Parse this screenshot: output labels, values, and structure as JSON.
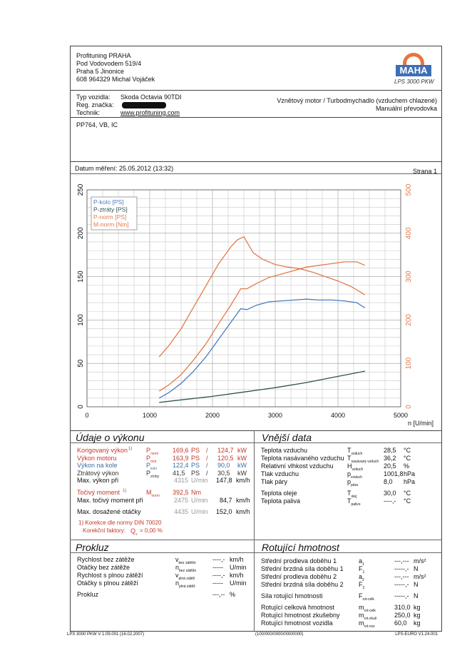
{
  "company": {
    "name": "Profituning PRAHA",
    "street": "Pod Vodovodem 519/4",
    "city": "Praha 5 Jinonice",
    "contact": "608 964329  Michal Vojáček"
  },
  "logo": {
    "text": "MAHA",
    "caption": "LPS 3000 PKW",
    "ring": "Maschinenbau Haldenwang"
  },
  "vehicle": {
    "type_label": "Typ vozidla:",
    "type_value": "Skoda Octavia 90TDI",
    "reg_label": "Reg. značka:",
    "tech_label": "Technik:",
    "tech_value": "www.profituning.com",
    "engine": "Vznětový motor / Turbodmychadlo (vzduchem chlazené)",
    "gearbox": "Manuální převodovka"
  },
  "notes": "PP764, VB, IC",
  "measurement": {
    "date_label": "Datum měření: 25.05.2012 (13:32)",
    "page_label": "Strana 1"
  },
  "colors": {
    "p_kolo": "#4a7cc0",
    "p_ztraty": "#2f4f4f",
    "p_norm": "#e07b4a",
    "m_norm": "#e07b4a"
  },
  "chart_data": {
    "type": "line",
    "xlabel": "n [U/min]",
    "xlim": [
      0,
      5000
    ],
    "xticks": [
      0,
      1000,
      2000,
      3000,
      4000,
      5000
    ],
    "ylim_left": [
      0,
      250
    ],
    "yticks_left": [
      0,
      50,
      100,
      150,
      200,
      250
    ],
    "ylim_right": [
      0,
      500
    ],
    "yticks_right": [
      0,
      100,
      200,
      300,
      400,
      500
    ],
    "grid": true,
    "legend_placement": "top-left",
    "series": [
      {
        "name": "P-kolo [PS]",
        "axis": "left",
        "color": "#4a7cc0",
        "x": [
          1150,
          1300,
          1500,
          1700,
          1900,
          2100,
          2300,
          2450,
          2550,
          2700,
          2900,
          3100,
          3300,
          3500,
          3700,
          3900,
          4100,
          4300,
          4430
        ],
        "y": [
          10,
          16,
          27,
          41,
          58,
          78,
          98,
          113,
          112,
          117,
          121,
          122,
          123,
          124,
          123,
          123,
          122,
          120,
          114
        ]
      },
      {
        "name": "P-ztráty [PS]",
        "axis": "left",
        "color": "#2f4f4f",
        "x": [
          1150,
          1500,
          2000,
          2500,
          3000,
          3500,
          4000,
          4430
        ],
        "y": [
          5,
          8,
          12,
          17,
          22,
          28,
          35,
          41
        ]
      },
      {
        "name": "P-norm [PS]",
        "axis": "left",
        "color": "#e07b4a",
        "x": [
          1150,
          1300,
          1500,
          1700,
          1900,
          2100,
          2300,
          2450,
          2550,
          2700,
          2900,
          3100,
          3300,
          3500,
          3700,
          3900,
          4100,
          4300,
          4430
        ],
        "y": [
          18,
          25,
          37,
          54,
          73,
          96,
          118,
          136,
          136,
          142,
          149,
          153,
          157,
          161,
          163,
          165,
          167,
          167,
          163
        ]
      },
      {
        "name": "M-norm [Nm]",
        "axis": "right",
        "color": "#e07b4a",
        "x": [
          1150,
          1300,
          1500,
          1700,
          1900,
          2100,
          2300,
          2400,
          2500,
          2650,
          2800,
          3000,
          3200,
          3400,
          3600,
          3800,
          4000,
          4200,
          4430
        ],
        "y": [
          115,
          140,
          180,
          230,
          280,
          330,
          370,
          385,
          392,
          355,
          340,
          328,
          322,
          318,
          310,
          300,
          290,
          278,
          258
        ]
      }
    ]
  },
  "vykon": {
    "title": "Údaje o výkonu",
    "rows": [
      {
        "label": "Korigovaný výkon",
        "mark": "1)",
        "sym": "P",
        "sub": "norm",
        "ps": "169,6",
        "ps_unit": "PS",
        "kw": "124,7",
        "kw_unit": "kW"
      },
      {
        "label": "Výkon motoru",
        "mark": "",
        "sym": "P",
        "sub": "mot",
        "ps": "163,9",
        "ps_unit": "PS",
        "kw": "120,5",
        "kw_unit": "kW"
      },
      {
        "label": "Výkon na kole",
        "mark": "",
        "sym": "P",
        "sub": "kolo",
        "ps": "122,4",
        "ps_unit": "PS",
        "kw": "90,0",
        "kw_unit": "kW"
      },
      {
        "label": "Ztrátový výkon",
        "mark": "",
        "sym": "P",
        "sub": "ztráty",
        "ps": "41,5",
        "ps_unit": "PS",
        "kw": "30,5",
        "kw_unit": "kW"
      }
    ],
    "max_power": {
      "label": "Max. výkon při",
      "rpm": "4315",
      "rpm_unit": "U/min",
      "speed": "147,8",
      "speed_unit": "km/h"
    },
    "torque": {
      "label": "Točivý moment",
      "mark": "1)",
      "sym": "M",
      "sub": "norm",
      "value": "392,5",
      "unit": "Nm"
    },
    "max_torque": {
      "label": "Max. točivý moment při",
      "rpm": "2475",
      "rpm_unit": "U/min",
      "speed": "84,7",
      "speed_unit": "km/h"
    },
    "max_rpm": {
      "label": "Max. dosažené otáčky",
      "rpm": "4435",
      "rpm_unit": "U/min",
      "speed": "152,0",
      "speed_unit": "km/h"
    },
    "correction": "1) Korekce dle normy DIN 70020",
    "factor_label": "Korekční faktory:",
    "factor_sym": "Q",
    "factor_sub": "v",
    "factor_value": "=   0,00 %"
  },
  "vnejsi": {
    "title": "Vnější data",
    "rows": [
      {
        "label": "Teplota vzduchu",
        "sym": "T",
        "sub": "vzduch",
        "value": "28,5",
        "unit": "°C"
      },
      {
        "label": "Teplota nasávaného vzduchu",
        "sym": "T",
        "sub": "nasávaný vzduch",
        "value": "36,2",
        "unit": "°C"
      },
      {
        "label": "Relativní vlhkost vzduchu",
        "sym": "H",
        "sub": "vzduch",
        "value": "20,5",
        "unit": "%"
      },
      {
        "label": "Tlak vzduchu",
        "sym": "p",
        "sub": "vzduch",
        "value": "1001,8",
        "unit": "hPa"
      },
      {
        "label": "Tlak páry",
        "sym": "p",
        "sub": "pára",
        "value": "8,0",
        "unit": "hPa"
      },
      {
        "label": "Teplota oleje",
        "sym": "T",
        "sub": "olej",
        "value": "30,0",
        "unit": "°C"
      },
      {
        "label": "Teplota paliva",
        "sym": "T",
        "sub": "palivo",
        "value": "----,-",
        "unit": "°C"
      }
    ]
  },
  "prokluz": {
    "title": "Prokluz",
    "rows": [
      {
        "label": "Rychlost bez zátěže",
        "sym": "v",
        "sub": "bez zátěže",
        "value": "----,-",
        "unit": "km/h"
      },
      {
        "label": "Otáčky bez zátěže",
        "sym": "n",
        "sub": "bez zátěže",
        "value": "-----",
        "unit": "U/min"
      },
      {
        "label": "Rychlost s plnou zátěží",
        "sym": "v",
        "sub": "plná zátěž",
        "value": "----,-",
        "unit": "km/h"
      },
      {
        "label": "Otáčky s plnou zátěží",
        "sym": "n",
        "sub": "plná zátěž",
        "value": "-----",
        "unit": "U/min"
      },
      {
        "label": "Prokluz",
        "sym": "",
        "sub": "",
        "value": "---,--",
        "unit": "%"
      }
    ]
  },
  "rotujici": {
    "title": "Rotující hmotnost",
    "rows": [
      {
        "label": "Střední prodleva doběhu 1",
        "sym": "a",
        "sub": "1",
        "value": "---,---",
        "unit": "m/s²"
      },
      {
        "label": "Střední brzdná síla doběhu 1",
        "sym": "F",
        "sub": "1",
        "value": "-----,-",
        "unit": "N"
      },
      {
        "label": "Střední prodleva doběhu 2",
        "sym": "a",
        "sub": "2",
        "value": "---,---",
        "unit": "m/s²"
      },
      {
        "label": "Střední brzdná síla doběhu 2",
        "sym": "F",
        "sub": "2",
        "value": "-----,-",
        "unit": "N"
      },
      {
        "label": "Síla rotující hmotnosti",
        "sym": "F",
        "sub": "rot-celk",
        "value": "-----,-",
        "unit": "N"
      },
      {
        "label": "Rotující celková hmotnost",
        "sym": "m",
        "sub": "rot-celk",
        "value": "310,0",
        "unit": "kg"
      },
      {
        "label": "Rotující hmotnost zkušebny",
        "sym": "m",
        "sub": "rot-zkuš",
        "value": "250,0",
        "unit": "kg"
      },
      {
        "label": "Rotující hmotnost vozidla",
        "sym": "m",
        "sub": "rot-voz",
        "value": "60,0",
        "unit": "kg"
      }
    ]
  },
  "footer": {
    "left": "LPS 3000 PKW V 1.09.001 (16.02.2007)",
    "center": "(100/000/0000/000/0000)",
    "right": "LPS-EURO V1.24.001"
  }
}
